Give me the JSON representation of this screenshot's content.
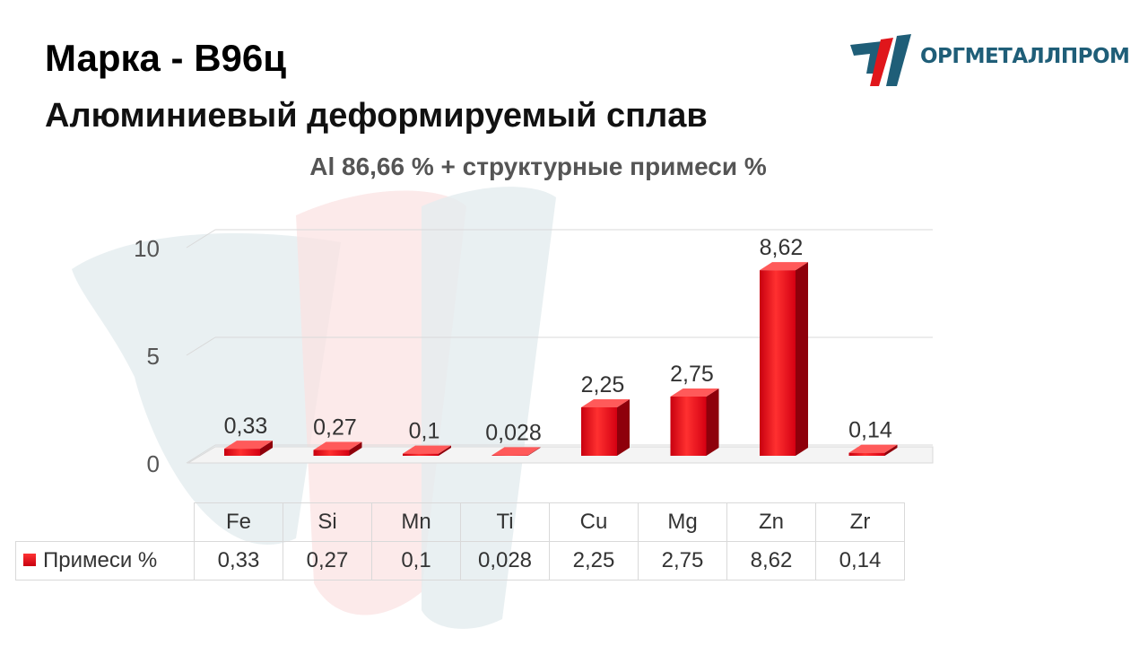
{
  "header": {
    "grade_label": "Марка -",
    "grade_value": "В96ц",
    "subtitle": "Алюминиевый деформируемый сплав"
  },
  "logo": {
    "text": "ОРГМЕТАЛЛПРОМ"
  },
  "colors": {
    "bar": "#e8101e",
    "bar_dark": "#a3000c",
    "logo": "#1f5e78",
    "logo_red": "#e0161b"
  },
  "chart_data": {
    "type": "bar",
    "title": "Al 86,66 % + структурные примеси %",
    "categories": [
      "Fe",
      "Si",
      "Mn",
      "Ti",
      "Cu",
      "Mg",
      "Zn",
      "Zr"
    ],
    "series": [
      {
        "name": "Примеси %",
        "values": [
          0.33,
          0.27,
          0.1,
          0.028,
          2.25,
          2.75,
          8.62,
          0.14
        ]
      }
    ],
    "value_labels": [
      "0,33",
      "0,27",
      "0,1",
      "0,028",
      "2,25",
      "2,75",
      "8,62",
      "0,14"
    ],
    "y_ticks": [
      0,
      5,
      10
    ],
    "y_tick_labels": [
      "0",
      "5",
      "10"
    ],
    "ylim": [
      0,
      10
    ],
    "grid": true,
    "legend": "table-bottom",
    "style": "3d"
  }
}
